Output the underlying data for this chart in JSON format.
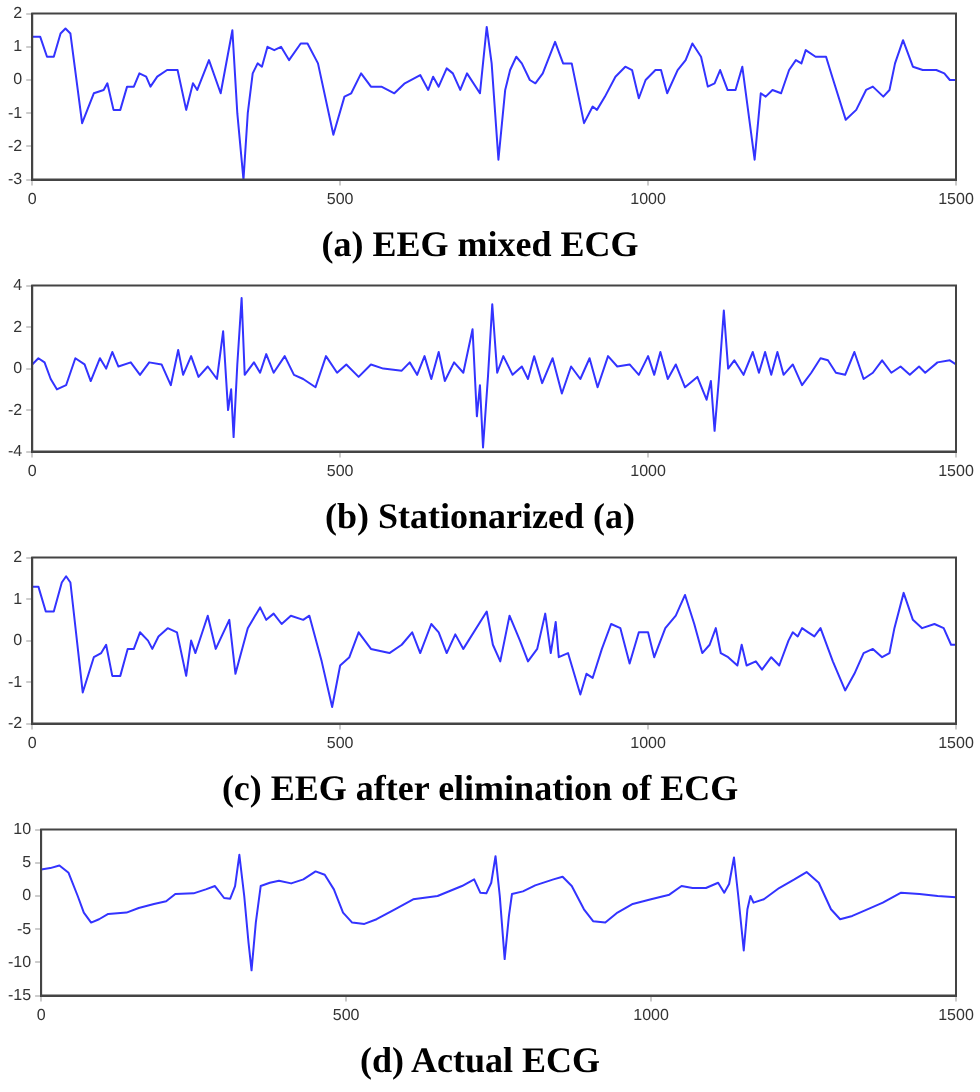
{
  "chart_data": [
    {
      "type": "line",
      "title": "(a) EEG mixed ECG",
      "color": "#3333ff",
      "marker": "none",
      "grid": false,
      "xlim": [
        0,
        1500
      ],
      "xticks": [
        0,
        500,
        1000,
        1500
      ],
      "ylim": [
        -3,
        2
      ],
      "yticks": [
        -3,
        -2,
        -1,
        0,
        1,
        2
      ],
      "x": [
        0,
        13,
        24,
        35,
        46,
        54,
        62,
        81,
        100,
        116,
        122,
        132,
        143,
        154,
        165,
        174,
        185,
        192,
        203,
        219,
        236,
        250,
        261,
        268,
        287,
        306,
        325,
        333,
        343,
        350,
        358,
        366,
        373,
        382,
        393,
        404,
        417,
        436,
        447,
        464,
        489,
        507,
        518,
        534,
        550,
        567,
        588,
        605,
        630,
        643,
        651,
        660,
        673,
        683,
        695,
        706,
        727,
        738,
        746,
        757,
        768,
        776,
        786,
        795,
        808,
        817,
        829,
        849,
        862,
        876,
        896,
        910,
        917,
        930,
        947,
        963,
        974,
        985,
        996,
        1012,
        1021,
        1031,
        1048,
        1061,
        1072,
        1086,
        1097,
        1108,
        1117,
        1129,
        1142,
        1153,
        1173,
        1183,
        1191,
        1202,
        1216,
        1229,
        1240,
        1249,
        1256,
        1272,
        1289,
        1299,
        1321,
        1338,
        1354,
        1365,
        1382,
        1392,
        1401,
        1414,
        1430,
        1446,
        1468,
        1481,
        1490,
        1500
      ],
      "values": [
        1.3,
        1.3,
        0.7,
        0.7,
        1.4,
        1.55,
        1.4,
        -1.3,
        -0.4,
        -0.3,
        -0.1,
        -0.9,
        -0.9,
        -0.2,
        -0.2,
        0.2,
        0.1,
        -0.2,
        0.1,
        0.3,
        0.3,
        -0.9,
        -0.1,
        -0.3,
        0.6,
        -0.4,
        1.5,
        -1,
        -3,
        -1,
        0.2,
        0.5,
        0.4,
        1,
        0.9,
        1,
        0.6,
        1.1,
        1.1,
        0.5,
        -1.65,
        -0.5,
        -0.4,
        0.2,
        -0.2,
        -0.2,
        -0.4,
        -0.1,
        0.15,
        -0.3,
        0.1,
        -0.2,
        0.35,
        0.2,
        -0.3,
        0.2,
        -0.4,
        1.6,
        0.5,
        -2.4,
        -0.3,
        0.3,
        0.7,
        0.5,
        0,
        -0.1,
        0.2,
        1.15,
        0.5,
        0.5,
        -1.3,
        -0.8,
        -0.9,
        -0.5,
        0.1,
        0.4,
        0.3,
        -0.55,
        0,
        0.3,
        0.3,
        -0.4,
        0.3,
        0.6,
        1.1,
        0.7,
        -0.2,
        -0.1,
        0.3,
        -0.3,
        -0.3,
        0.4,
        -2.4,
        -0.4,
        -0.5,
        -0.3,
        -0.4,
        0.3,
        0.6,
        0.5,
        0.9,
        0.7,
        0.7,
        0.1,
        -1.2,
        -0.9,
        -0.3,
        -0.2,
        -0.5,
        -0.3,
        0.5,
        1.2,
        0.4,
        0.3,
        0.3,
        0.2,
        0,
        0
      ]
    },
    {
      "type": "line",
      "title": "(b) Stationarized (a)",
      "color": "#3333ff",
      "marker": "none",
      "grid": false,
      "xlim": [
        0,
        1500
      ],
      "xticks": [
        0,
        500,
        1000,
        1500
      ],
      "ylim": [
        -4,
        4
      ],
      "yticks": [
        -4,
        -2,
        0,
        2,
        4
      ],
      "x": [
        0,
        10,
        20,
        30,
        40,
        55,
        70,
        85,
        95,
        110,
        120,
        130,
        140,
        160,
        175,
        190,
        210,
        225,
        237,
        245,
        258,
        270,
        285,
        300,
        310,
        318,
        323,
        327,
        333,
        340,
        345,
        360,
        370,
        380,
        392,
        410,
        425,
        440,
        460,
        477,
        495,
        510,
        530,
        550,
        570,
        600,
        613,
        625,
        637,
        648,
        660,
        670,
        685,
        700,
        715,
        722,
        727,
        732,
        740,
        747,
        755,
        765,
        780,
        795,
        805,
        815,
        828,
        845,
        860,
        875,
        890,
        905,
        918,
        935,
        950,
        970,
        985,
        1000,
        1010,
        1020,
        1032,
        1045,
        1060,
        1080,
        1095,
        1102,
        1108,
        1115,
        1123,
        1130,
        1140,
        1155,
        1170,
        1180,
        1190,
        1200,
        1210,
        1220,
        1235,
        1250,
        1265,
        1280,
        1292,
        1305,
        1320,
        1335,
        1350,
        1365,
        1380,
        1395,
        1410,
        1425,
        1440,
        1450,
        1470,
        1490,
        1500
      ],
      "values": [
        0.2,
        0.5,
        0.3,
        -0.5,
        -1,
        -0.8,
        0.5,
        0.2,
        -0.6,
        0.5,
        0,
        0.8,
        0.1,
        0.3,
        -0.3,
        0.3,
        0.2,
        -0.8,
        0.9,
        -0.3,
        0.6,
        -0.4,
        0.1,
        -0.5,
        1.8,
        -2,
        -1,
        -3.3,
        0.2,
        3.4,
        -0.3,
        0.3,
        -0.2,
        0.7,
        -0.2,
        0.6,
        -0.3,
        -0.5,
        -0.9,
        0.6,
        -0.2,
        0.2,
        -0.4,
        0.2,
        0,
        -0.1,
        0.3,
        -0.3,
        0.6,
        -0.5,
        0.8,
        -0.6,
        0.3,
        -0.2,
        1.9,
        -2.3,
        -0.8,
        -3.8,
        -0.4,
        3.1,
        -0.2,
        0.6,
        -0.3,
        0.1,
        -0.5,
        0.6,
        -0.7,
        0.5,
        -1.2,
        0.1,
        -0.5,
        0.5,
        -0.9,
        0.6,
        0.1,
        0.2,
        -0.3,
        0.6,
        -0.3,
        0.8,
        -0.5,
        0.2,
        -0.9,
        -0.4,
        -1.5,
        -0.6,
        -3,
        -0.5,
        2.8,
        0,
        0.4,
        -0.3,
        0.8,
        -0.2,
        0.8,
        -0.3,
        0.8,
        -0.3,
        0.2,
        -0.8,
        -0.2,
        0.5,
        0.4,
        -0.2,
        -0.3,
        0.8,
        -0.5,
        -0.2,
        0.4,
        -0.2,
        0.1,
        -0.3,
        0.1,
        -0.2,
        0.3,
        0.4,
        0.2
      ]
    },
    {
      "type": "line",
      "title": "(c) EEG after elimination of ECG",
      "color": "#3333ff",
      "marker": "none",
      "grid": false,
      "xlim": [
        0,
        1500
      ],
      "xticks": [
        0,
        500,
        1000,
        1500
      ],
      "ylim": [
        -2,
        2
      ],
      "yticks": [
        -2,
        -1,
        0,
        1,
        2
      ],
      "x": [
        0,
        10,
        22,
        35,
        48,
        55,
        62,
        82,
        100,
        112,
        120,
        130,
        143,
        155,
        165,
        175,
        188,
        195,
        205,
        220,
        235,
        250,
        258,
        265,
        285,
        298,
        320,
        330,
        350,
        370,
        380,
        392,
        405,
        420,
        440,
        450,
        470,
        487,
        500,
        515,
        530,
        550,
        580,
        600,
        617,
        630,
        648,
        660,
        673,
        687,
        700,
        738,
        748,
        760,
        775,
        792,
        805,
        820,
        833,
        842,
        850,
        855,
        870,
        890,
        900,
        910,
        925,
        940,
        955,
        970,
        985,
        1000,
        1010,
        1028,
        1045,
        1060,
        1075,
        1088,
        1100,
        1110,
        1118,
        1130,
        1145,
        1152,
        1160,
        1175,
        1185,
        1200,
        1213,
        1228,
        1235,
        1243,
        1250,
        1260,
        1270,
        1280,
        1300,
        1320,
        1335,
        1350,
        1365,
        1380,
        1392,
        1400,
        1415,
        1430,
        1445,
        1465,
        1480,
        1492,
        1500
      ],
      "values": [
        1.3,
        1.3,
        0.7,
        0.7,
        1.4,
        1.55,
        1.4,
        -1.25,
        -0.4,
        -0.3,
        -0.1,
        -0.85,
        -0.85,
        -0.2,
        -0.2,
        0.2,
        0,
        -0.2,
        0.1,
        0.3,
        0.2,
        -0.85,
        0,
        -0.3,
        0.6,
        -0.2,
        0.5,
        -0.8,
        0.3,
        0.8,
        0.5,
        0.65,
        0.4,
        0.6,
        0.5,
        0.6,
        -0.5,
        -1.6,
        -0.6,
        -0.4,
        0.2,
        -0.2,
        -0.3,
        -0.1,
        0.2,
        -0.3,
        0.4,
        0.2,
        -0.3,
        0.15,
        -0.2,
        0.7,
        -0.1,
        -0.5,
        0.6,
        0,
        -0.5,
        -0.2,
        0.65,
        -0.3,
        0.45,
        -0.4,
        -0.3,
        -1.3,
        -0.8,
        -0.9,
        -0.2,
        0.4,
        0.3,
        -0.55,
        0.2,
        0.2,
        -0.4,
        0.3,
        0.6,
        1.1,
        0.4,
        -0.3,
        -0.1,
        0.3,
        -0.3,
        -0.4,
        -0.6,
        -0.1,
        -0.6,
        -0.5,
        -0.7,
        -0.4,
        -0.6,
        0,
        0.2,
        0.1,
        0.3,
        0.2,
        0.1,
        0.3,
        -0.5,
        -1.2,
        -0.8,
        -0.3,
        -0.2,
        -0.4,
        -0.3,
        0.3,
        1.15,
        0.5,
        0.3,
        0.4,
        0.3,
        -0.1,
        -0.1
      ]
    },
    {
      "type": "line",
      "title": "(d) Actual ECG",
      "color": "#3333ff",
      "marker": "none",
      "grid": false,
      "xlim": [
        0,
        1500
      ],
      "xticks": [
        0,
        500,
        1000,
        1500
      ],
      "ylim": [
        -15,
        10
      ],
      "yticks": [
        -15,
        -10,
        -5,
        0,
        5,
        10
      ],
      "x": [
        0,
        15,
        30,
        45,
        60,
        70,
        82,
        95,
        110,
        140,
        160,
        185,
        205,
        220,
        250,
        270,
        285,
        300,
        310,
        318,
        325,
        333,
        340,
        345,
        352,
        360,
        375,
        390,
        410,
        430,
        450,
        465,
        480,
        495,
        510,
        530,
        550,
        580,
        610,
        650,
        690,
        710,
        720,
        730,
        738,
        745,
        752,
        760,
        767,
        772,
        790,
        810,
        840,
        855,
        870,
        890,
        905,
        925,
        945,
        970,
        1000,
        1030,
        1050,
        1068,
        1090,
        1110,
        1120,
        1128,
        1136,
        1143,
        1152,
        1158,
        1163,
        1168,
        1185,
        1210,
        1235,
        1255,
        1275,
        1295,
        1310,
        1330,
        1350,
        1380,
        1410,
        1440,
        1470,
        1500
      ],
      "values": [
        4,
        4.2,
        4.6,
        3.5,
        0,
        -2.5,
        -4,
        -3.5,
        -2.7,
        -2.5,
        -1.8,
        -1.2,
        -0.8,
        0.3,
        0.4,
        1,
        1.5,
        -0.3,
        -0.4,
        1.5,
        6.2,
        0,
        -7,
        -11.2,
        -4,
        1.5,
        2,
        2.3,
        1.9,
        2.5,
        3.7,
        3.2,
        1,
        -2.5,
        -4,
        -4.2,
        -3.5,
        -2,
        -0.5,
        0,
        1.5,
        2.5,
        0.5,
        0.4,
        2,
        6,
        0,
        -9.5,
        -3,
        0.3,
        0.7,
        1.6,
        2.5,
        2.9,
        1.5,
        -2,
        -3.8,
        -4,
        -2.5,
        -1.2,
        -0.5,
        0.2,
        1.5,
        1.2,
        1.2,
        2,
        0.5,
        1.8,
        5.8,
        0,
        -8.2,
        -2,
        0,
        -1,
        -0.5,
        1.2,
        2.5,
        3.6,
        2,
        -2,
        -3.5,
        -3,
        -2.2,
        -1,
        0.5,
        0.3,
        0,
        -0.2
      ]
    }
  ]
}
